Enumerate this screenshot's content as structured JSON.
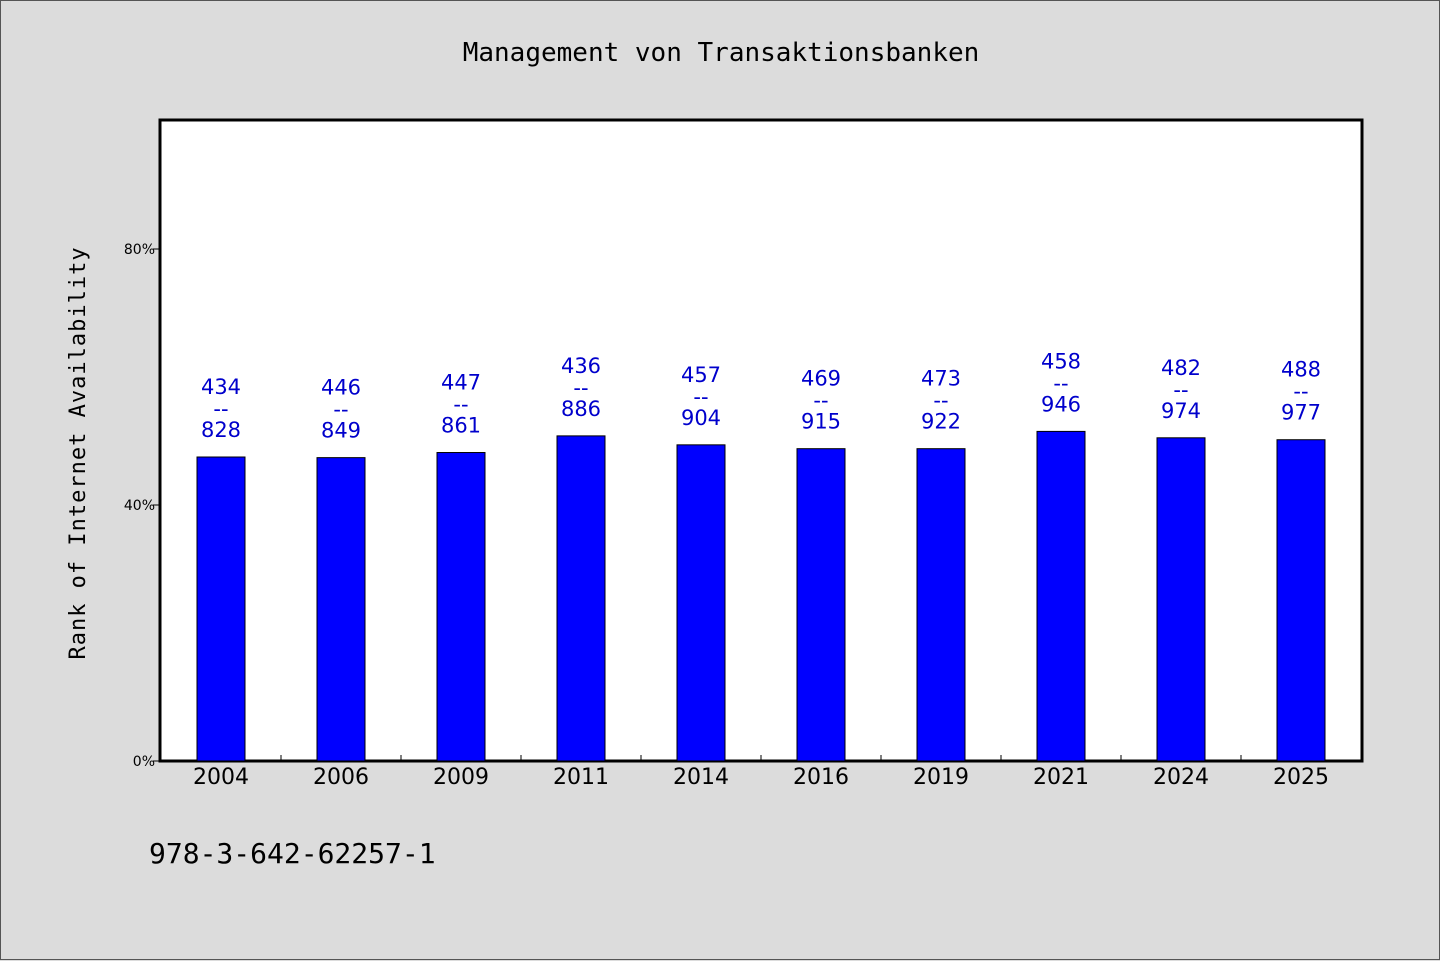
{
  "footnote": "978-3-642-62257-1",
  "colors": {
    "background": "#dcdcdc",
    "plot_background": "#ffffff",
    "bar": "#0000ff",
    "bar_label": "#0000cc"
  },
  "chart_data": {
    "type": "bar",
    "title": "Management von Transaktionsbanken",
    "xlabel": "",
    "ylabel": "Rank of Internet Availability",
    "categories": [
      "2004",
      "2006",
      "2009",
      "2011",
      "2014",
      "2016",
      "2019",
      "2021",
      "2024",
      "2025"
    ],
    "values": [
      47.5,
      47.4,
      48.2,
      50.8,
      49.4,
      48.8,
      48.8,
      51.5,
      50.5,
      50.2
    ],
    "bar_labels": [
      {
        "top": "434",
        "sep": "--",
        "bottom": "828"
      },
      {
        "top": "446",
        "sep": "--",
        "bottom": "849"
      },
      {
        "top": "447",
        "sep": "--",
        "bottom": "861"
      },
      {
        "top": "436",
        "sep": "--",
        "bottom": "886"
      },
      {
        "top": "457",
        "sep": "--",
        "bottom": "904"
      },
      {
        "top": "469",
        "sep": "--",
        "bottom": "915"
      },
      {
        "top": "473",
        "sep": "--",
        "bottom": "922"
      },
      {
        "top": "458",
        "sep": "--",
        "bottom": "946"
      },
      {
        "top": "482",
        "sep": "--",
        "bottom": "974"
      },
      {
        "top": "488",
        "sep": "--",
        "bottom": "977"
      }
    ],
    "y_unit": "%",
    "ylim": [
      0,
      100
    ],
    "yticks": [
      {
        "value": 0,
        "label": "0%"
      },
      {
        "value": 40,
        "label": "40%"
      },
      {
        "value": 80,
        "label": "80%"
      }
    ],
    "grid": false,
    "legend": "none"
  }
}
